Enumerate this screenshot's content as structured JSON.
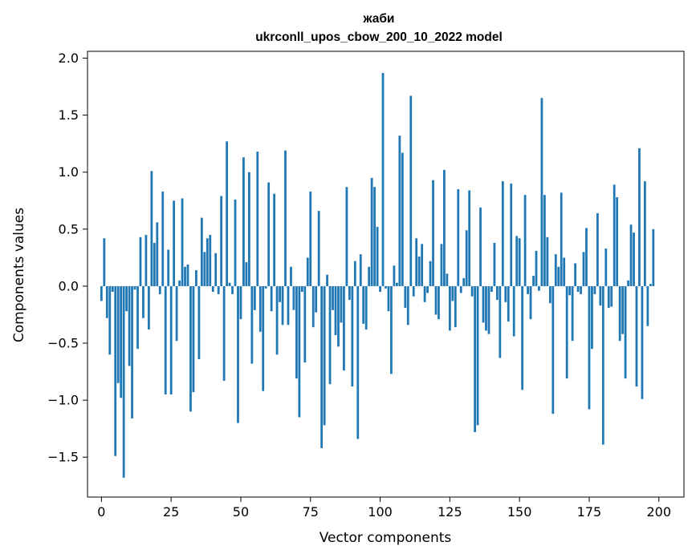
{
  "chart_data": {
    "type": "bar",
    "title_line1": "жаби",
    "title_line2": "ukrconll_upos_cbow_200_10_2022 model",
    "xlabel": "Vector components",
    "ylabel": "Components values",
    "xlim": [
      -5,
      209
    ],
    "ylim": [
      -1.85,
      2.06
    ],
    "x_ticks": [
      0,
      25,
      50,
      75,
      100,
      125,
      150,
      175,
      200
    ],
    "x_tick_labels": [
      "0",
      "25",
      "50",
      "75",
      "100",
      "125",
      "150",
      "175",
      "200"
    ],
    "y_ticks": [
      -1.5,
      -1.0,
      -0.5,
      0.0,
      0.5,
      1.0,
      1.5,
      2.0
    ],
    "y_tick_labels": [
      "−1.5",
      "−1.0",
      "−0.5",
      "0.0",
      "0.5",
      "1.0",
      "1.5",
      "2.0"
    ],
    "bar_color": "#1f77b4",
    "grid": false,
    "values": [
      -0.13,
      0.42,
      -0.28,
      -0.6,
      -0.05,
      -1.49,
      -0.85,
      -0.98,
      -1.68,
      -0.22,
      -0.7,
      -1.16,
      -0.03,
      -0.55,
      0.43,
      -0.28,
      0.45,
      -0.38,
      1.01,
      0.38,
      0.56,
      -0.07,
      0.83,
      -0.95,
      0.32,
      -0.95,
      0.75,
      -0.48,
      0.05,
      0.77,
      0.17,
      0.19,
      -1.1,
      -0.93,
      0.14,
      -0.64,
      0.6,
      0.3,
      0.42,
      0.45,
      -0.05,
      0.29,
      -0.07,
      0.79,
      -0.83,
      1.27,
      0.03,
      -0.07,
      0.76,
      -1.2,
      -0.29,
      1.13,
      0.21,
      1.0,
      -0.68,
      -0.21,
      1.18,
      -0.4,
      -0.92,
      -0.02,
      0.91,
      -0.22,
      0.81,
      -0.6,
      -0.14,
      -0.34,
      1.19,
      -0.34,
      0.17,
      -0.21,
      -0.81,
      -1.15,
      -0.05,
      -0.67,
      0.25,
      0.83,
      -0.36,
      -0.23,
      0.66,
      -1.42,
      -1.22,
      0.1,
      -0.86,
      -0.21,
      -0.43,
      -0.53,
      -0.32,
      -0.74,
      0.87,
      -0.12,
      -0.88,
      0.22,
      -1.34,
      0.28,
      -0.33,
      -0.38,
      0.17,
      0.95,
      0.87,
      0.52,
      -0.05,
      1.87,
      -0.02,
      -0.22,
      -0.77,
      0.18,
      0.03,
      1.32,
      1.17,
      -0.19,
      -0.34,
      1.67,
      -0.09,
      0.42,
      0.26,
      0.37,
      -0.14,
      -0.06,
      0.22,
      0.93,
      -0.25,
      -0.29,
      0.37,
      1.02,
      0.11,
      -0.39,
      -0.13,
      -0.36,
      0.85,
      -0.06,
      0.07,
      0.49,
      0.84,
      -0.09,
      -1.28,
      -1.22,
      0.69,
      -0.32,
      -0.39,
      -0.42,
      -0.05,
      0.38,
      -0.12,
      -0.63,
      0.92,
      -0.14,
      -0.31,
      0.9,
      -0.44,
      0.44,
      0.42,
      -0.91,
      0.8,
      -0.07,
      -0.29,
      0.09,
      0.31,
      -0.04,
      1.65,
      0.8,
      0.43,
      -0.15,
      -1.12,
      0.28,
      0.17,
      0.82,
      0.25,
      -0.81,
      -0.08,
      -0.48,
      0.2,
      -0.05,
      -0.07,
      0.3,
      0.51,
      -1.08,
      -0.55,
      -0.07,
      0.64,
      -0.17,
      -1.39,
      0.33,
      -0.19,
      -0.18,
      0.89,
      0.78,
      -0.48,
      -0.42,
      -0.81,
      0.05,
      0.54,
      0.47,
      -0.88,
      1.21,
      -0.99,
      0.92,
      -0.35,
      0.02,
      0.5,
      0.0
    ]
  }
}
